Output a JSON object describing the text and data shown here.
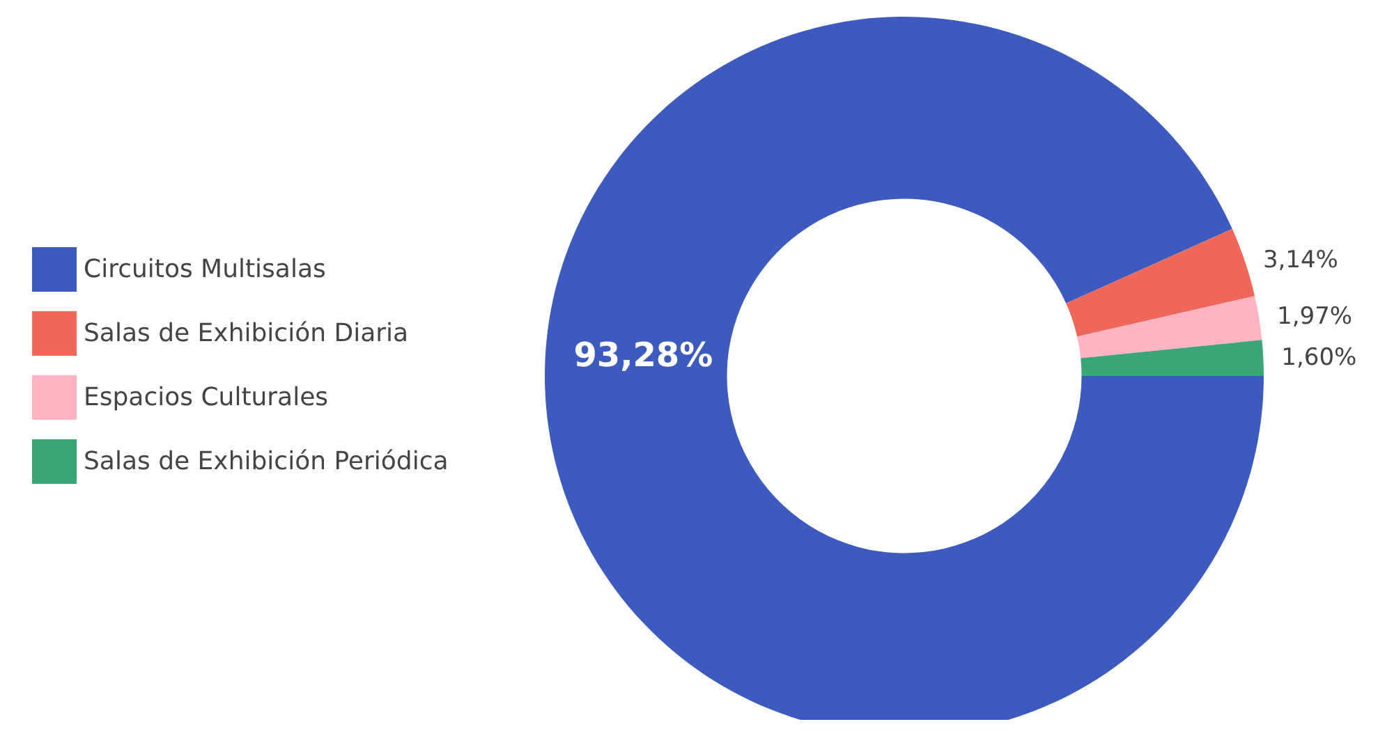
{
  "chart_data": {
    "type": "donut",
    "categories": [
      "Circuitos Multisalas",
      "Salas de Exhibición Diaria",
      "Espacios Culturales",
      "Salas de Exhibición Periódica"
    ],
    "values": [
      93.28,
      3.14,
      1.97,
      1.6
    ],
    "colors": [
      "#3d5bbf",
      "#ee6759",
      "#ffb3c3",
      "#3aa676"
    ],
    "value_labels": [
      "93,28%",
      "3,14%",
      "1,97%",
      "1,60%"
    ],
    "legend": "left"
  }
}
